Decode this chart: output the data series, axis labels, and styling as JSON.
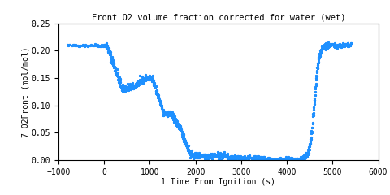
{
  "title": "Front O2 volume fraction corrected for water (wet)",
  "xlabel": "1 Time From Ignition (s)",
  "ylabel": "7 O2Front (mol/mol)",
  "xlim": [
    -1000,
    6000
  ],
  "ylim": [
    0,
    0.25
  ],
  "xticks": [
    -1000,
    0,
    1000,
    2000,
    3000,
    4000,
    5000,
    6000
  ],
  "yticks": [
    0,
    0.05,
    0.1,
    0.15,
    0.2,
    0.25
  ],
  "line_color": "#1e90ff",
  "marker": "*",
  "markersize": 2,
  "linewidth": 0,
  "title_fontsize": 7.5,
  "label_fontsize": 7,
  "tick_fontsize": 7
}
